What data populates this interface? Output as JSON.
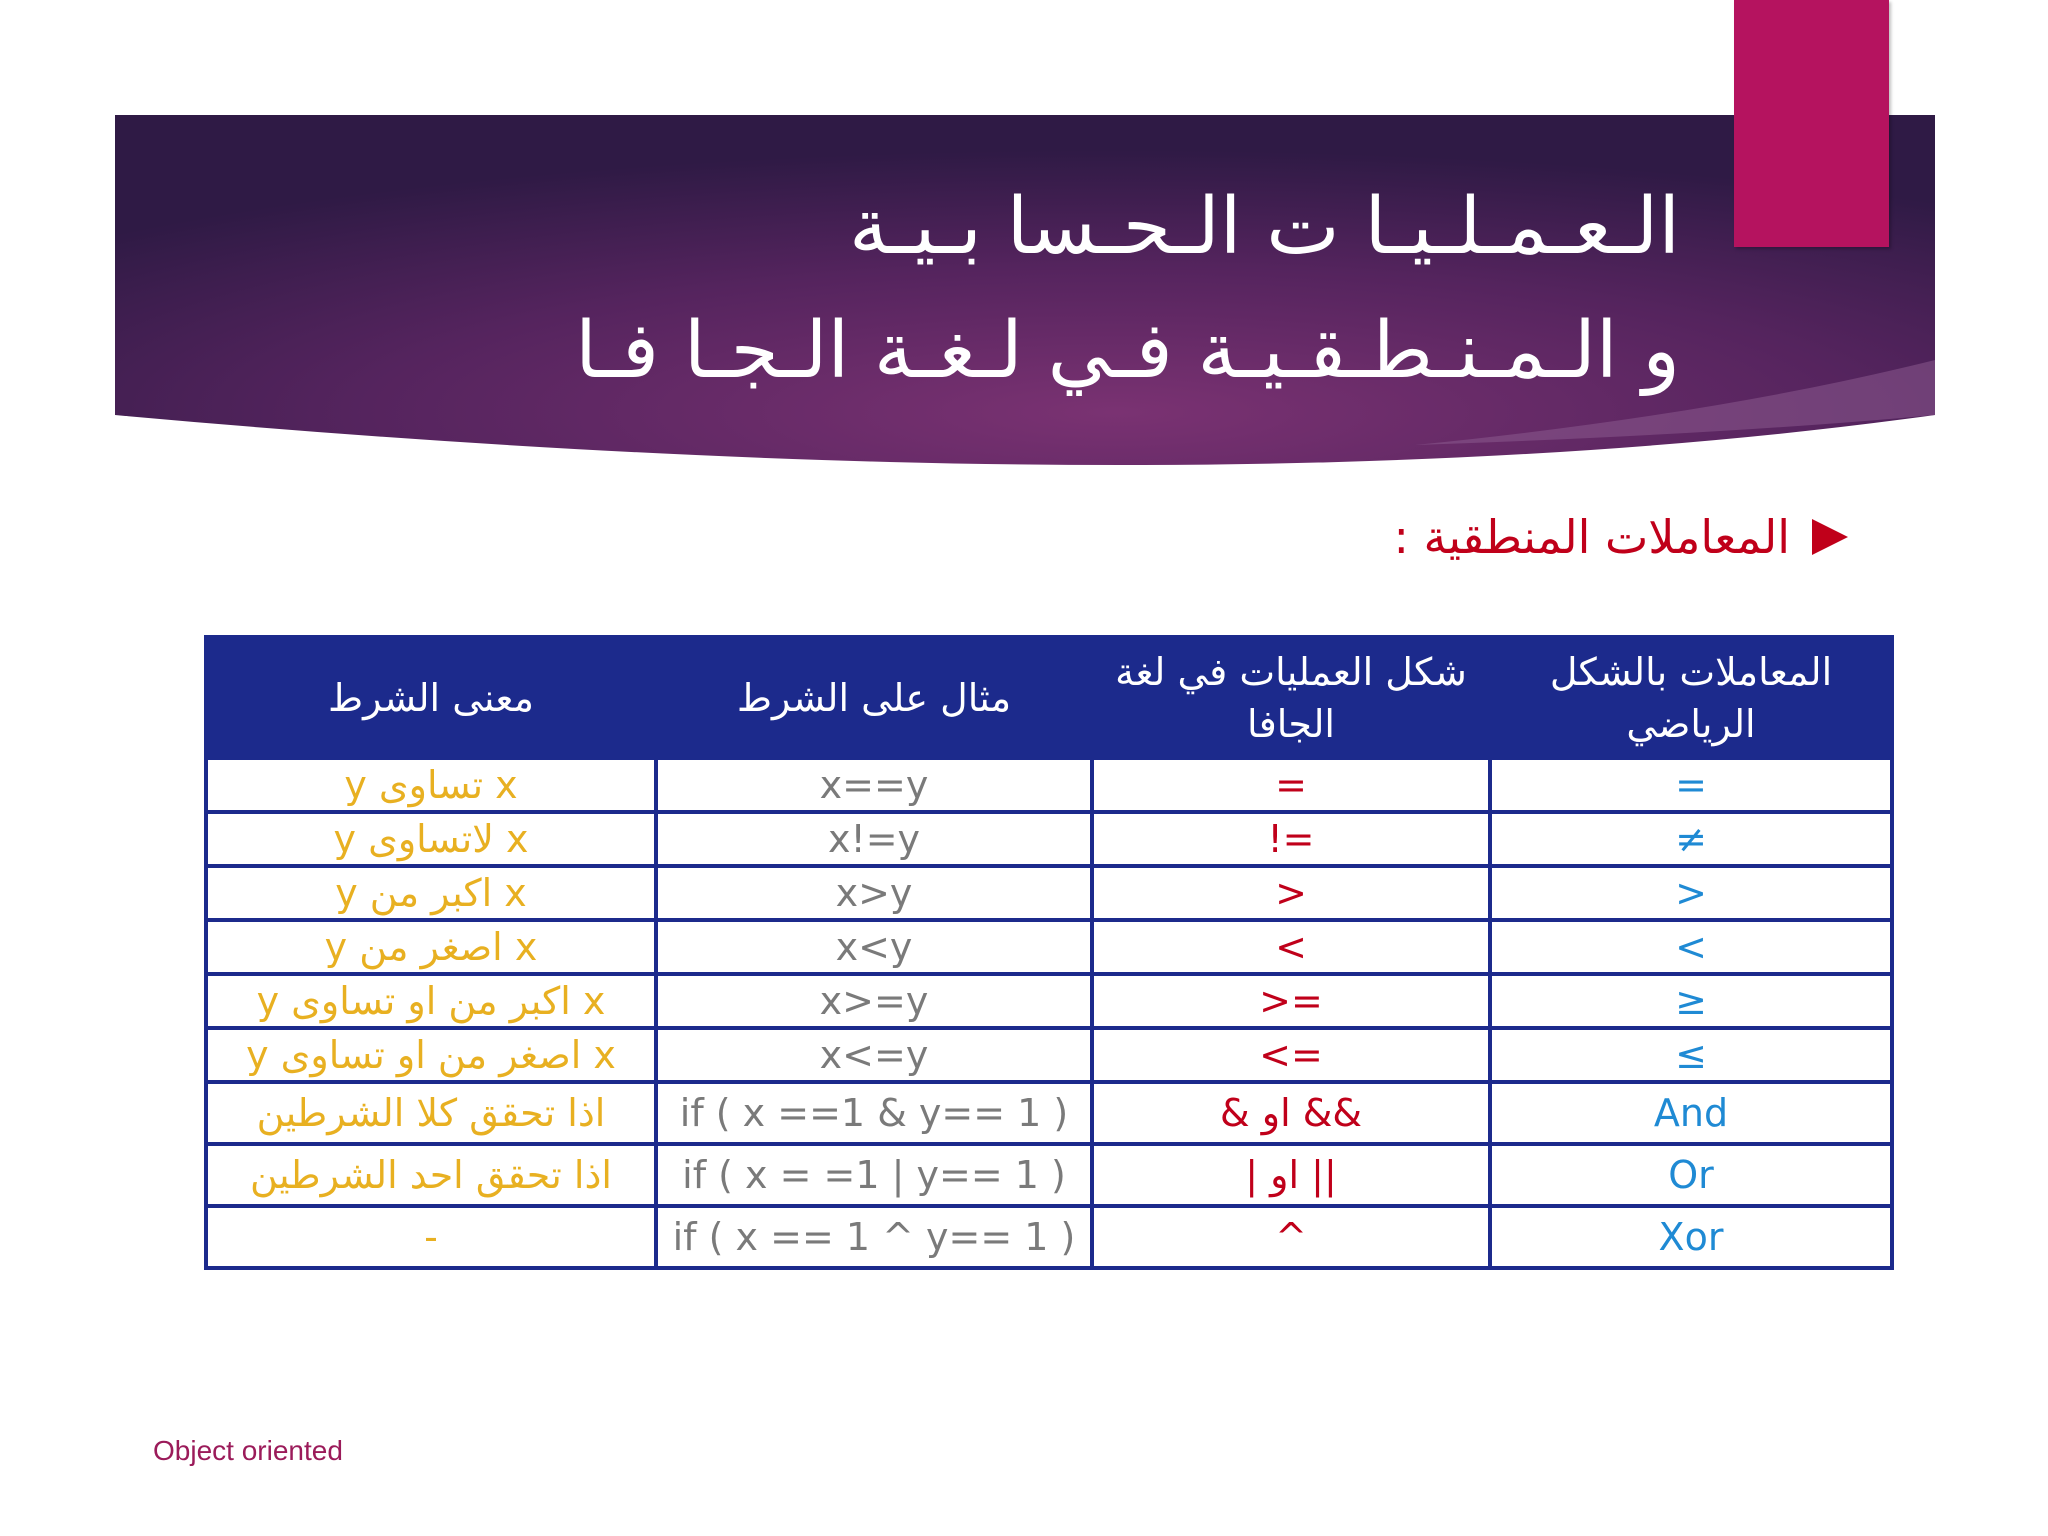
{
  "slide": {
    "title_line1": "الـعـمـلـيـا ت الـحـسا بـيـة",
    "title_line2": "و الـمـنـطـقـيـة فـي لـغـة الـجـا فـا",
    "section_label": "المعاملات المنطقية :",
    "footer": "Object oriented",
    "colors": {
      "banner": "#5a2560",
      "accent": "#b5135f",
      "table_header": "#1c2a8c"
    }
  },
  "table": {
    "headers": {
      "math": "المعاملات بالشكل الرياضي",
      "java": "شكل العمليات في لغة الجافا",
      "example": "مثال على الشرط",
      "meaning": "معنى الشرط"
    },
    "rows": [
      {
        "math": "=",
        "java": "=",
        "example": "x==y",
        "meaning": "x تساوى y"
      },
      {
        "math": "≠",
        "java": "!=",
        "example": "x!=y",
        "meaning": "x لاتساوى y"
      },
      {
        "math": ">",
        "java": ">",
        "example": "x>y",
        "meaning": "x اكبر من y"
      },
      {
        "math": "<",
        "java": "<",
        "example": "x<y",
        "meaning": "x اصغر من y"
      },
      {
        "math": "≥",
        "java": ">=",
        "example": "x>=y",
        "meaning": "x اكبر من او تساوى y"
      },
      {
        "math": "≤",
        "java": "<=",
        "example": "x<=y",
        "meaning": "x اصغر من او تساوى y"
      },
      {
        "math": "And",
        "java": "&   او   &&",
        "example": "if ( x ==1 & y== 1 )",
        "meaning": "اذا تحقق كلا الشرطين"
      },
      {
        "math": "Or",
        "java": "|   او   ||",
        "example": "if ( x = =1 |  y== 1 )",
        "meaning": "اذا تحقق احد الشرطين"
      },
      {
        "math": "Xor",
        "java": "^",
        "example": "if ( x == 1 ^ y== 1 )",
        "meaning": "-"
      }
    ]
  }
}
